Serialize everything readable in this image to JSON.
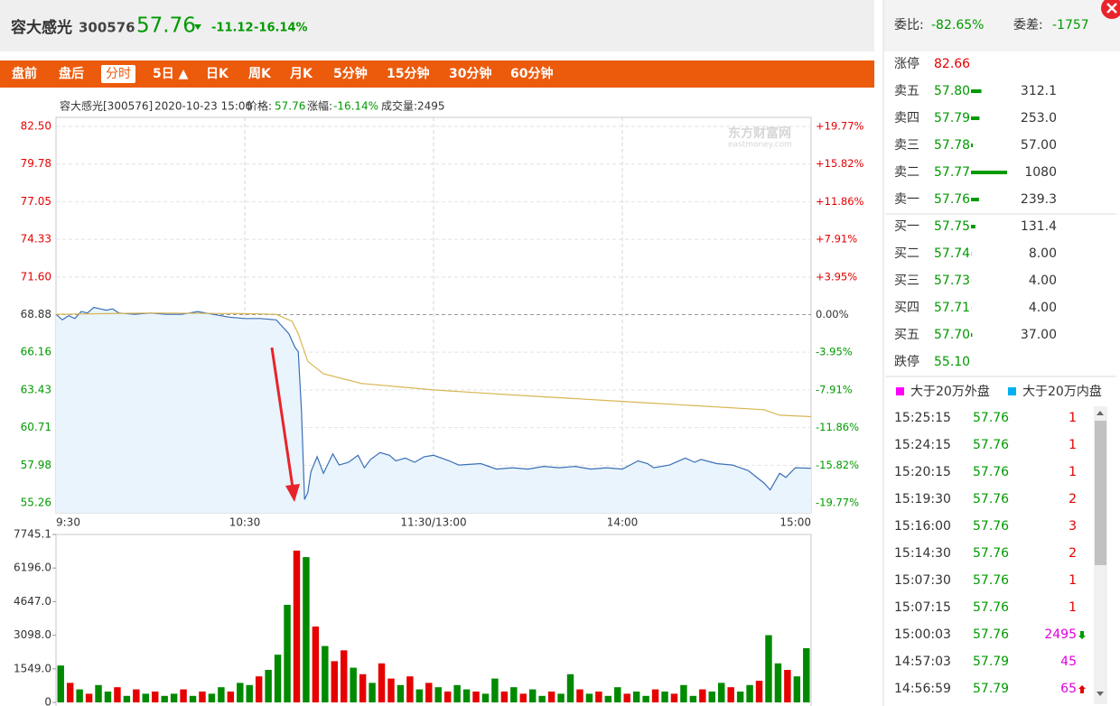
{
  "header": {
    "name": "容大感光",
    "code": "300576",
    "price": "57.76",
    "change": "-11.12",
    "change_pct": "-16.14%"
  },
  "tabs": [
    "盘前",
    "盘后",
    "分时",
    "5日 ▲",
    "日K",
    "周K",
    "月K",
    "5分钟",
    "15分钟",
    "30分钟",
    "60分钟"
  ],
  "active_tab": 2,
  "info": {
    "stock": "容大感光[300576]",
    "datetime": "2020-10-23 15:00",
    "price_label": "价格:",
    "price": "57.76",
    "pct_label": "涨幅:",
    "pct": "-16.14%",
    "volume_label": "成交量:",
    "volume": "2495"
  },
  "watermark": {
    "name": "东方财富网",
    "site": "eastmoney.com"
  },
  "chart_data": [
    {
      "type": "line",
      "xlim": [
        0,
        240
      ],
      "xticks": [
        {
          "value": 0,
          "label": "9:30"
        },
        {
          "value": 60,
          "label": "10:30"
        },
        {
          "value": 120,
          "label": "11:30/13:00"
        },
        {
          "value": 180,
          "label": "14:00"
        },
        {
          "value": 240,
          "label": "15:00"
        }
      ],
      "ylim": [
        55.26,
        82.5
      ],
      "yticks": [
        55.26,
        57.98,
        60.71,
        63.43,
        66.16,
        68.88,
        {
          "value": 71.6,
          "label": "71.60"
        },
        74.33,
        77.05,
        79.78,
        {
          "value": 82.5,
          "label": "82.50"
        }
      ],
      "y2lim": [
        -19.77,
        19.77
      ],
      "y2ticks": [
        {
          "value": -19.77,
          "label": "-19.77%"
        },
        {
          "value": -15.82,
          "label": "-15.82%"
        },
        {
          "value": -11.86,
          "label": "-11.86%"
        },
        {
          "value": -7.91,
          "label": "-7.91%"
        },
        {
          "value": -3.95,
          "label": "-3.95%"
        },
        {
          "value": 0,
          "label": "0.00%"
        },
        {
          "value": 3.95,
          "label": "+3.95%"
        },
        {
          "value": 7.91,
          "label": "+7.91%"
        },
        {
          "value": 11.86,
          "label": "+11.86%"
        },
        {
          "value": 15.82,
          "label": "+15.82%"
        },
        {
          "value": 19.77,
          "label": "+19.77%"
        }
      ],
      "grid": true,
      "series": [
        {
          "color": "#3b6fb6",
          "fill": "#e9f4fc",
          "x": [
            0,
            2,
            4,
            6,
            8,
            10,
            12,
            14,
            16,
            18,
            20,
            25,
            30,
            35,
            40,
            45,
            50,
            55,
            60,
            65,
            70,
            72,
            74,
            76,
            77,
            78,
            79,
            80,
            81,
            83,
            85,
            88,
            90,
            93,
            96,
            98,
            100,
            103,
            106,
            108,
            111,
            114,
            117,
            120,
            125,
            128,
            135,
            140,
            145,
            150,
            155,
            160,
            165,
            170,
            175,
            180,
            185,
            188,
            190,
            195,
            200,
            203,
            205,
            210,
            215,
            220,
            225,
            227,
            230,
            232,
            235,
            240
          ],
          "values": [
            68.9,
            68.5,
            68.8,
            68.6,
            69.1,
            69.0,
            69.4,
            69.3,
            69.2,
            69.3,
            69.0,
            68.9,
            69.0,
            68.9,
            68.9,
            69.1,
            68.9,
            68.7,
            68.6,
            68.6,
            68.5,
            68.0,
            67.5,
            66.5,
            66.2,
            62.0,
            55.5,
            56.0,
            57.5,
            58.6,
            57.4,
            58.8,
            58.0,
            58.2,
            58.7,
            57.8,
            58.4,
            58.9,
            58.7,
            58.3,
            58.5,
            58.2,
            58.6,
            58.7,
            58.3,
            58.0,
            58.1,
            57.7,
            57.8,
            57.7,
            57.9,
            57.8,
            57.9,
            57.7,
            57.8,
            57.7,
            58.3,
            58.1,
            57.8,
            58.0,
            58.5,
            58.2,
            58.4,
            58.1,
            58.0,
            57.6,
            56.7,
            56.2,
            57.4,
            57.1,
            57.8,
            57.76
          ]
        },
        {
          "color": "#d8b552",
          "x": [
            0,
            30,
            60,
            70,
            75,
            77,
            80,
            85,
            97,
            120,
            150,
            180,
            225,
            230,
            240
          ],
          "values": [
            68.9,
            69.0,
            68.95,
            68.9,
            68.4,
            67.5,
            65.5,
            64.6,
            63.9,
            63.43,
            63.0,
            62.6,
            62.0,
            61.6,
            61.5
          ]
        }
      ]
    },
    {
      "type": "bar",
      "ylim": [
        0,
        7745.1
      ],
      "yticks": [
        0,
        {
          "value": 1549,
          "label": "1549.0"
        },
        {
          "value": 3098,
          "label": "3098.0"
        },
        {
          "value": 4647,
          "label": "4647.0"
        },
        {
          "value": 6196,
          "label": "6196.0"
        },
        7745.1
      ],
      "values": [
        1700,
        900,
        600,
        400,
        800,
        500,
        700,
        300,
        600,
        400,
        500,
        300,
        400,
        600,
        300,
        500,
        400,
        700,
        500,
        900,
        800,
        1200,
        1500,
        2200,
        4500,
        7000,
        6700,
        3500,
        2600,
        1900,
        2400,
        1600,
        1300,
        900,
        1800,
        1100,
        800,
        1200,
        600,
        900,
        700,
        500,
        800,
        600,
        500,
        400,
        1100,
        500,
        700,
        400,
        600,
        300,
        500,
        400,
        1300,
        600,
        400,
        500,
        300,
        700,
        400,
        500,
        300,
        600,
        500,
        400,
        800,
        300,
        600,
        500,
        900,
        700,
        500,
        800,
        1000,
        3100,
        1800,
        1500,
        1200,
        2500
      ],
      "colors": [
        "#008a00",
        "#e60000",
        "#008a00",
        "#e60000",
        "#008a00",
        "#008a00",
        "#e60000",
        "#008a00",
        "#e60000",
        "#008a00",
        "#e60000",
        "#008a00",
        "#008a00",
        "#e60000",
        "#008a00",
        "#e60000",
        "#008a00",
        "#008a00",
        "#e60000",
        "#008a00",
        "#008a00",
        "#e60000",
        "#008a00",
        "#008a00",
        "#008a00",
        "#e60000",
        "#008a00",
        "#e60000",
        "#008a00",
        "#e60000",
        "#e60000",
        "#008a00",
        "#e60000",
        "#008a00",
        "#e60000",
        "#e60000",
        "#008a00",
        "#e60000",
        "#008a00",
        "#e60000",
        "#008a00",
        "#e60000",
        "#008a00",
        "#008a00",
        "#e60000",
        "#008a00",
        "#008a00",
        "#e60000",
        "#008a00",
        "#e60000",
        "#008a00",
        "#008a00",
        "#e60000",
        "#008a00",
        "#008a00",
        "#e60000",
        "#008a00",
        "#e60000",
        "#008a00",
        "#008a00",
        "#e60000",
        "#008a00",
        "#008a00",
        "#e60000",
        "#008a00",
        "#e60000",
        "#008a00",
        "#008a00",
        "#e60000",
        "#008a00",
        "#008a00",
        "#e60000",
        "#008a00",
        "#008a00",
        "#e60000",
        "#008a00",
        "#008a00",
        "#e60000",
        "#008a00",
        "#008a00"
      ]
    }
  ],
  "order_summary": {
    "ratio_label": "委比:",
    "ratio": "-82.65%",
    "diff_label": "委差:",
    "diff": "-1757"
  },
  "order_book": {
    "limit_up": {
      "label": "涨停",
      "price": "82.66"
    },
    "asks": [
      {
        "label": "卖五",
        "price": "57.80",
        "volume": "312.1"
      },
      {
        "label": "卖四",
        "price": "57.79",
        "volume": "253.0"
      },
      {
        "label": "卖三",
        "price": "57.78",
        "volume": "57.00"
      },
      {
        "label": "卖二",
        "price": "57.77",
        "volume": "1080"
      },
      {
        "label": "卖一",
        "price": "57.76",
        "volume": "239.3"
      }
    ],
    "bids": [
      {
        "label": "买一",
        "price": "57.75",
        "volume": "131.4"
      },
      {
        "label": "买二",
        "price": "57.74",
        "volume": "8.00"
      },
      {
        "label": "买三",
        "price": "57.73",
        "volume": "4.00"
      },
      {
        "label": "买四",
        "price": "57.71",
        "volume": "4.00"
      },
      {
        "label": "买五",
        "price": "57.70",
        "volume": "37.00"
      }
    ],
    "limit_down": {
      "label": "跌停",
      "price": "55.10"
    }
  },
  "trade_legend": [
    {
      "label": "大于20万外盘",
      "color": "#ff00ff"
    },
    {
      "label": "大于20万内盘",
      "color": "#00b0f0"
    }
  ],
  "trades": [
    {
      "time": "15:25:15",
      "price": "57.76",
      "volume": "1",
      "color": "#e60000"
    },
    {
      "time": "15:24:15",
      "price": "57.76",
      "volume": "1",
      "color": "#e60000"
    },
    {
      "time": "15:20:15",
      "price": "57.76",
      "volume": "1",
      "color": "#e60000"
    },
    {
      "time": "15:19:30",
      "price": "57.76",
      "volume": "2",
      "color": "#e60000"
    },
    {
      "time": "15:16:00",
      "price": "57.76",
      "volume": "3",
      "color": "#e60000"
    },
    {
      "time": "15:14:30",
      "price": "57.76",
      "volume": "2",
      "color": "#e60000"
    },
    {
      "time": "15:07:30",
      "price": "57.76",
      "volume": "1",
      "color": "#e60000"
    },
    {
      "time": "15:07:15",
      "price": "57.76",
      "volume": "1",
      "color": "#e60000"
    },
    {
      "time": "15:00:03",
      "price": "57.76",
      "volume": "2495",
      "color": "#e000e0",
      "flag": "down"
    },
    {
      "time": "14:57:03",
      "price": "57.79",
      "volume": "45",
      "color": "#e000e0"
    },
    {
      "time": "14:56:59",
      "price": "57.79",
      "volume": "65",
      "color": "#e000e0",
      "flag": "up"
    }
  ]
}
